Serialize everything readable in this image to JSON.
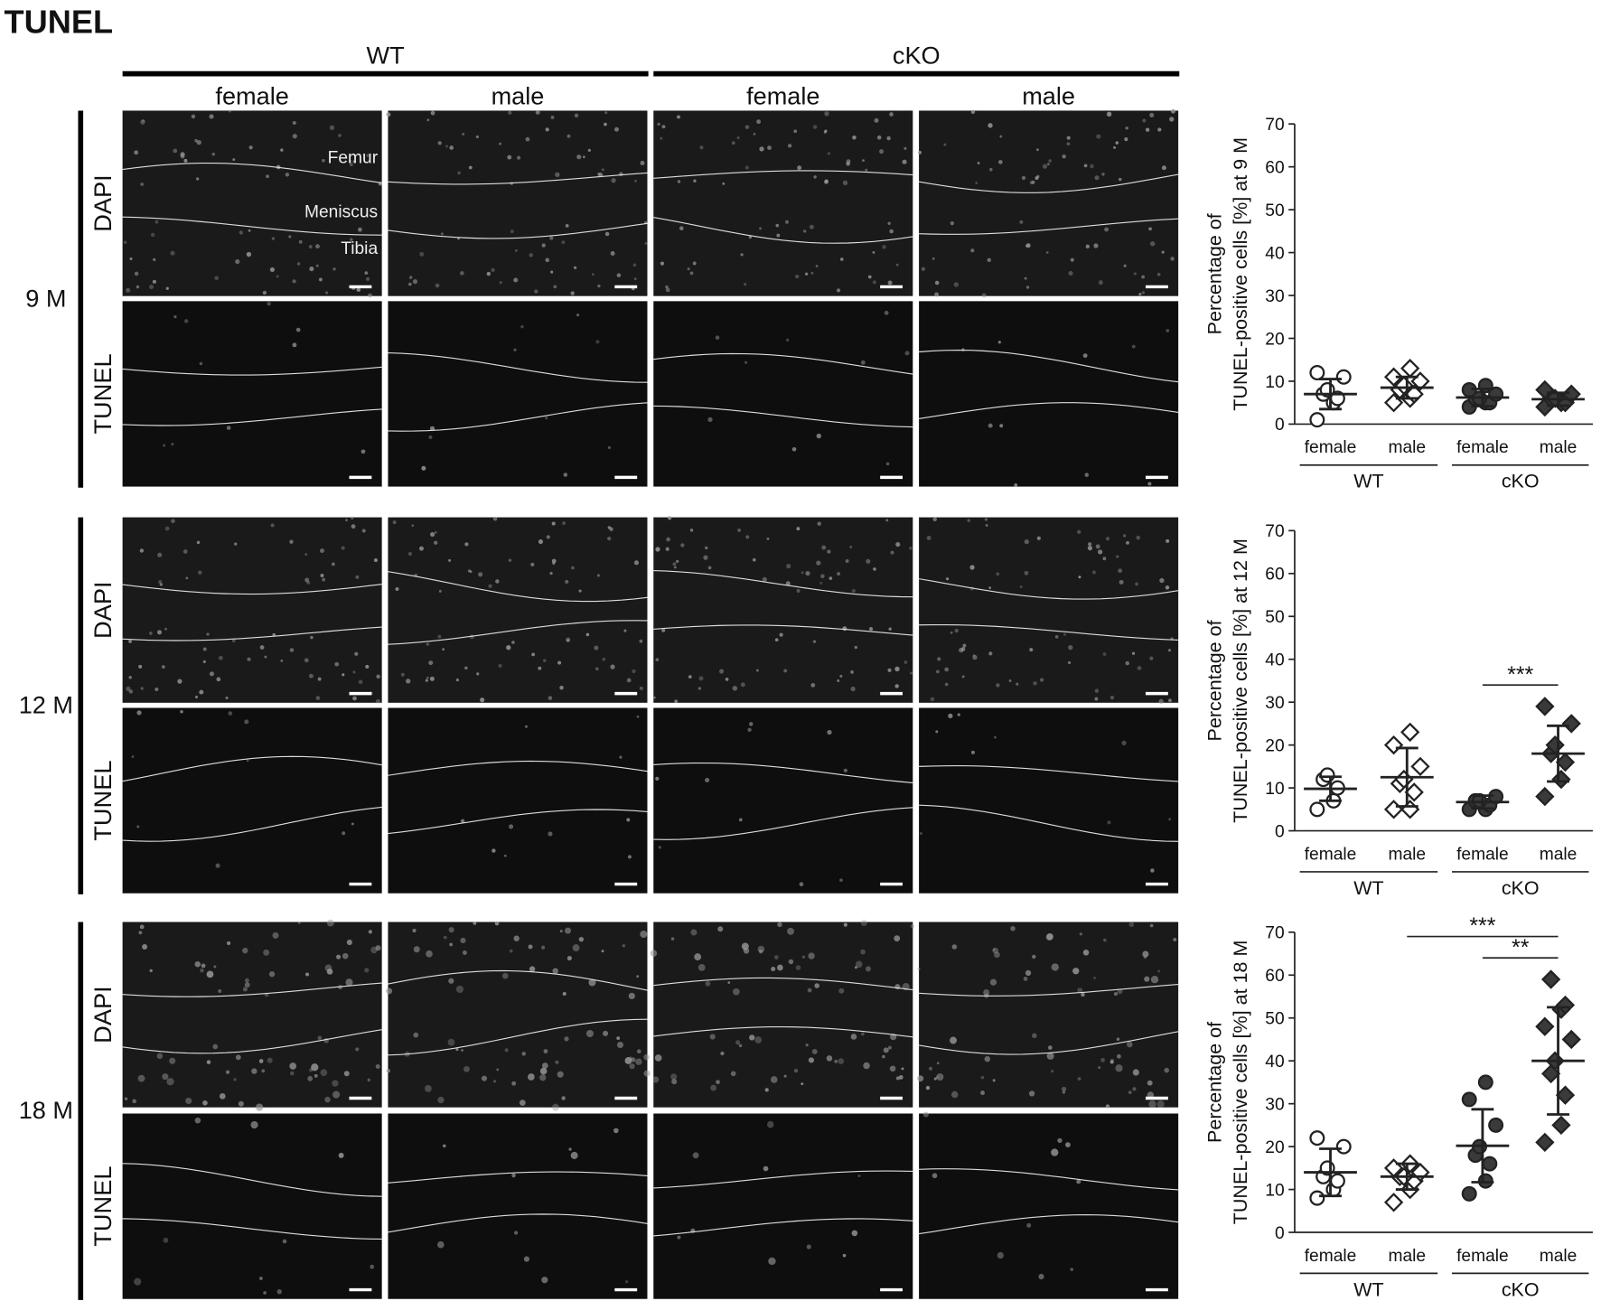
{
  "figure": {
    "title": "TUNEL",
    "genotypes": [
      "WT",
      "cKO"
    ],
    "sexes": [
      "female",
      "male",
      "female",
      "male"
    ],
    "ages": [
      "9 M",
      "12 M",
      "18 M"
    ],
    "stains": [
      "DAPI",
      "TUNEL"
    ],
    "tissue_labels": [
      "Femur",
      "Meniscus",
      "Tibia"
    ]
  },
  "chart_data": [
    {
      "type": "scatter",
      "ylabel": [
        "Percentage of",
        "TUNEL-positive cells [%] at 9 M"
      ],
      "categories": [
        "female",
        "male",
        "female",
        "male"
      ],
      "groups": [
        "WT",
        "cKO"
      ],
      "markers": [
        "circle",
        "diamond",
        "circle",
        "diamond"
      ],
      "colors": [
        "#ffffff",
        "#ffffff",
        "#3a3a3a",
        "#3a3a3a"
      ],
      "points": [
        [
          1,
          5,
          6,
          7,
          8,
          11,
          12
        ],
        [
          5,
          6,
          7,
          8,
          9,
          10,
          11,
          13
        ],
        [
          4,
          5,
          5,
          6,
          6,
          7,
          8,
          9
        ],
        [
          4,
          5,
          5,
          6,
          6,
          7,
          8
        ]
      ],
      "mean": [
        7,
        8.5,
        6.2,
        5.8
      ],
      "sd": [
        3.5,
        2.5,
        2,
        1.5
      ],
      "ylim": [
        0,
        70
      ],
      "yticks": [
        0,
        10,
        20,
        30,
        40,
        50,
        60,
        70
      ],
      "comparisons": []
    },
    {
      "type": "scatter",
      "ylabel": [
        "Percentage of",
        "TUNEL-positive cells [%] at 12 M"
      ],
      "categories": [
        "female",
        "male",
        "female",
        "male"
      ],
      "groups": [
        "WT",
        "cKO"
      ],
      "markers": [
        "circle",
        "diamond",
        "circle",
        "diamond"
      ],
      "colors": [
        "#ffffff",
        "#ffffff",
        "#3a3a3a",
        "#3a3a3a"
      ],
      "points": [
        [
          5,
          7,
          10,
          12,
          13
        ],
        [
          5,
          5,
          9,
          11,
          12,
          15,
          20,
          23
        ],
        [
          5,
          5,
          6,
          7,
          7,
          8
        ],
        [
          8,
          12,
          16,
          18,
          20,
          25,
          29
        ]
      ],
      "mean": [
        9.8,
        12.5,
        6.7,
        18
      ],
      "sd": [
        2.8,
        6.8,
        1.5,
        6.5
      ],
      "ylim": [
        0,
        70
      ],
      "yticks": [
        0,
        10,
        20,
        30,
        40,
        50,
        60,
        70
      ],
      "comparisons": [
        {
          "label": "***",
          "between": [
            2,
            3
          ]
        }
      ]
    },
    {
      "type": "scatter",
      "ylabel": [
        "Percentage of",
        "TUNEL-positive cells [%] at 18 M"
      ],
      "categories": [
        "female",
        "male",
        "female",
        "male"
      ],
      "groups": [
        "WT",
        "cKO"
      ],
      "markers": [
        "circle",
        "diamond",
        "circle",
        "diamond"
      ],
      "colors": [
        "#ffffff",
        "#ffffff",
        "#3a3a3a",
        "#3a3a3a"
      ],
      "points": [
        [
          8,
          10,
          12,
          13,
          15,
          20,
          22
        ],
        [
          7,
          10,
          12,
          13,
          13,
          14,
          15,
          16
        ],
        [
          9,
          12,
          16,
          18,
          20,
          25,
          31,
          35
        ],
        [
          21,
          25,
          32,
          37,
          40,
          45,
          48,
          52,
          53,
          59
        ]
      ],
      "mean": [
        14,
        13,
        20.2,
        40
      ],
      "sd": [
        5.5,
        3,
        8.5,
        12.5
      ],
      "ylim": [
        0,
        70
      ],
      "yticks": [
        0,
        10,
        20,
        30,
        40,
        50,
        60,
        70
      ],
      "comparisons": [
        {
          "label": "***",
          "between": [
            1,
            3
          ]
        },
        {
          "label": "**",
          "between": [
            2,
            3
          ]
        }
      ]
    }
  ]
}
